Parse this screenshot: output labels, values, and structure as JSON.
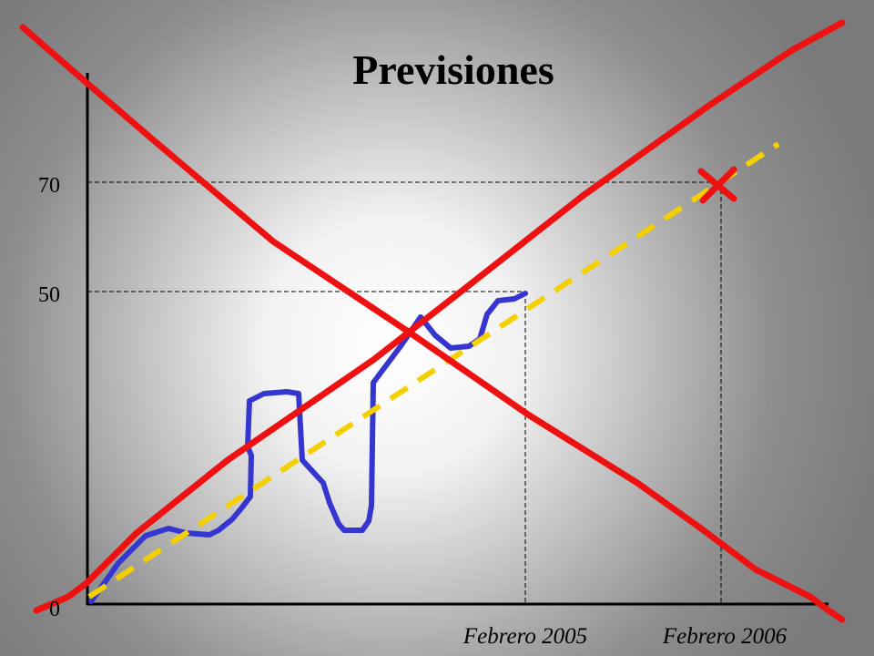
{
  "slide": {
    "title": "Previsiones",
    "y_labels": [
      "70",
      "50",
      "0"
    ],
    "x_labels": [
      "Febrero 2005",
      "Febrero 2006"
    ]
  }
}
